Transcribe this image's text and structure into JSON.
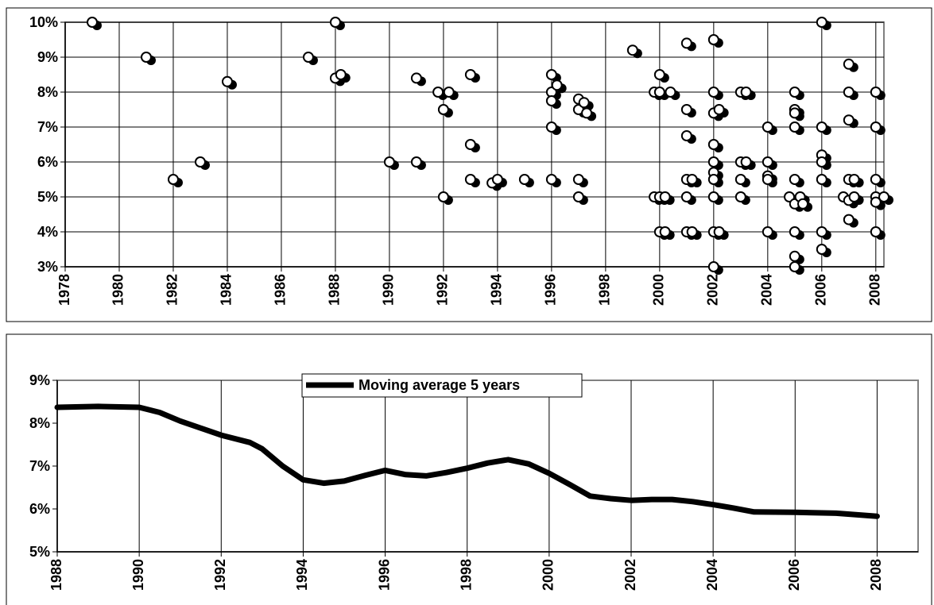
{
  "chart_data": [
    {
      "type": "scatter",
      "x": [
        1979,
        1981,
        1982,
        1983,
        1984,
        1987,
        1988,
        1988,
        1988.2,
        1990,
        1991,
        1991,
        1991.8,
        1992,
        1992,
        1992.2,
        1993,
        1993,
        1993,
        1993.8,
        1994,
        1995,
        1996,
        1996,
        1996,
        1996,
        1996,
        1996.2,
        1997,
        1997,
        1997,
        1997,
        1997.2,
        1997.3,
        1999,
        1999.8,
        1999.8,
        2000,
        2000,
        2000,
        2000,
        2000.2,
        2000.2,
        2000.4,
        2001,
        2001,
        2001,
        2001,
        2001,
        2001,
        2001.2,
        2001.2,
        2002,
        2002,
        2002,
        2002,
        2002,
        2002,
        2002,
        2002,
        2002,
        2002,
        2002.2,
        2002.2,
        2003,
        2003,
        2003,
        2003,
        2003.2,
        2003.2,
        2004,
        2004,
        2004,
        2004,
        2004,
        2004.8,
        2005,
        2005,
        2005,
        2005,
        2005,
        2005,
        2005,
        2005,
        2005,
        2005.2,
        2005.3,
        2006,
        2006,
        2006,
        2006,
        2006,
        2006,
        2006,
        2006.8,
        2007,
        2007,
        2007,
        2007,
        2007,
        2007,
        2007.2,
        2007.2,
        2008,
        2008,
        2008,
        2008,
        2008,
        2008,
        2008.3
      ],
      "values": [
        10,
        9,
        5.5,
        6,
        8.3,
        9,
        10,
        8.4,
        8.5,
        6,
        8.4,
        6,
        8,
        7.5,
        5,
        8,
        8.5,
        6.5,
        5.5,
        5.4,
        5.5,
        5.5,
        8.5,
        8,
        7.75,
        7,
        5.5,
        8.2,
        7.8,
        7.5,
        5.5,
        5,
        7.7,
        7.4,
        9.2,
        8,
        5,
        8.5,
        8,
        5,
        4,
        4,
        5,
        8,
        9.4,
        7.5,
        6.75,
        5.5,
        5,
        4,
        5.5,
        4,
        9.5,
        8,
        7.4,
        6.5,
        6,
        5.7,
        5.5,
        5,
        4,
        3,
        7.5,
        4,
        8,
        6,
        5.5,
        5,
        8,
        6,
        7,
        6,
        5.6,
        5.5,
        4,
        5,
        8,
        7.5,
        7.4,
        7,
        5.5,
        4.8,
        4,
        3.3,
        3,
        5,
        4.8,
        10,
        7,
        6.2,
        6,
        5.5,
        4,
        3.5,
        5,
        8.8,
        8,
        7.2,
        5.5,
        4.9,
        4.35,
        5.5,
        5,
        8,
        7,
        5.5,
        5,
        4.85,
        4,
        5
      ],
      "xlim": [
        1978,
        2008.3
      ],
      "ylim": [
        3,
        10
      ],
      "xticks": [
        1978,
        1980,
        1982,
        1984,
        1986,
        1988,
        1990,
        1992,
        1994,
        1996,
        1998,
        2000,
        2002,
        2004,
        2006,
        2008
      ],
      "yticks": [
        {
          "value": 3,
          "label": "3%"
        },
        {
          "value": 4,
          "label": "4%"
        },
        {
          "value": 5,
          "label": "5%"
        },
        {
          "value": 6,
          "label": "6%"
        },
        {
          "value": 7,
          "label": "7%"
        },
        {
          "value": 8,
          "label": "8%"
        },
        {
          "value": 9,
          "label": "9%"
        },
        {
          "value": 10,
          "label": "10%"
        }
      ],
      "grid": "both"
    },
    {
      "type": "line",
      "x": [
        1988,
        1989,
        1990,
        1990.5,
        1991,
        1992,
        1992.7,
        1993,
        1993.5,
        1994,
        1994.5,
        1995,
        1995.5,
        1996,
        1996.5,
        1997,
        1997.5,
        1998,
        1998.5,
        1999,
        1999.5,
        2000,
        2000.5,
        2001,
        2001.5,
        2002,
        2002.5,
        2003,
        2003.5,
        2004,
        2004.5,
        2005,
        2006,
        2007,
        2008
      ],
      "series": [
        {
          "name": "Moving average 5 years",
          "color": "#000000",
          "values": [
            8.37,
            8.39,
            8.37,
            8.25,
            8.05,
            7.72,
            7.55,
            7.4,
            7.0,
            6.68,
            6.6,
            6.65,
            6.78,
            6.9,
            6.8,
            6.77,
            6.85,
            6.95,
            7.07,
            7.15,
            7.05,
            6.83,
            6.57,
            6.3,
            6.24,
            6.2,
            6.22,
            6.22,
            6.17,
            6.1,
            6.02,
            5.93,
            5.92,
            5.9,
            5.83
          ]
        }
      ],
      "xlim": [
        1988,
        2009
      ],
      "ylim": [
        5,
        9
      ],
      "xticks": [
        1988,
        1990,
        1992,
        1994,
        1996,
        1998,
        2000,
        2002,
        2004,
        2006,
        2008
      ],
      "yticks": [
        {
          "value": 5,
          "label": "5%"
        },
        {
          "value": 6,
          "label": "6%"
        },
        {
          "value": 7,
          "label": "7%"
        },
        {
          "value": 8,
          "label": "8%"
        },
        {
          "value": 9,
          "label": "9%"
        }
      ],
      "grid": "x"
    }
  ]
}
